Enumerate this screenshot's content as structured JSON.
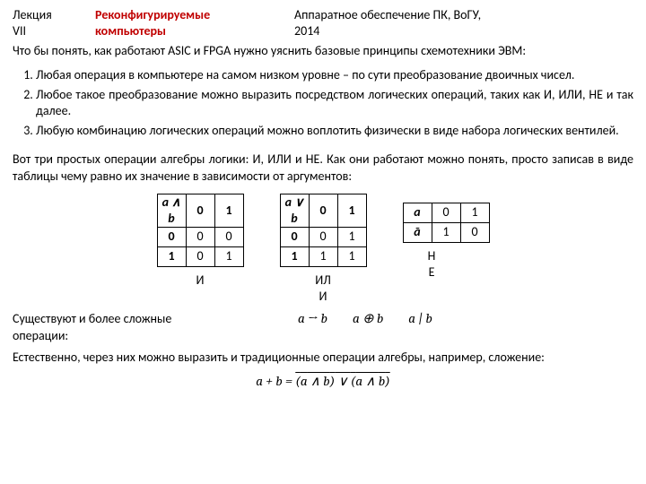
{
  "header": {
    "left_line1": "Лекция",
    "left_line2": "VII",
    "center_line1": "Реконфигурируемые",
    "center_line2": "компьютеры",
    "right_line1": "Аппаратное обеспечение ПК, ВоГУ,",
    "right_line2": "2014",
    "color_accent": "#c00000"
  },
  "p1": "Что бы понять, как работают ASIC и FPGA нужно уяснить базовые принципы схемотехники ЭВМ:",
  "list": [
    "Любая операция в компьютере на самом низком уровне – по сути преобразование двоичных чисел.",
    "Любое такое преобразование можно выразить посредством логических операций, таких как И, ИЛИ, НЕ и так далее.",
    "Любую комбинацию логических операций можно воплотить физически в виде набора логических вентилей."
  ],
  "p2": "Вот три простых операции алгебры логики: И, ИЛИ и НЕ. Как они работают можно понять, просто записав в виде таблицы чему равно их значение в зависимости от аргументов:",
  "tables": {
    "and": {
      "header": [
        "a ∧ b",
        "0",
        "1"
      ],
      "rows": [
        [
          "0",
          "0",
          "0"
        ],
        [
          "1",
          "0",
          "1"
        ]
      ],
      "caption": "И"
    },
    "or": {
      "header": [
        "a ∨ b",
        "0",
        "1"
      ],
      "rows": [
        [
          "0",
          "0",
          "1"
        ],
        [
          "1",
          "1",
          "1"
        ]
      ],
      "caption_l1": "ИЛ",
      "caption_l2": "И"
    },
    "not": {
      "rows": [
        [
          "a",
          "0",
          "1"
        ],
        [
          "ā",
          "1",
          "0"
        ]
      ],
      "caption_l1": "Н",
      "caption_l2": "Е"
    }
  },
  "ops_label_l1": "Существуют и более сложные",
  "ops_label_l2": "операции:",
  "ops_impl": "a → b",
  "ops_xor": "a ⊕ b",
  "ops_shef": "a | b",
  "p3": "Естественно, через них можно выразить и традиционные операции алгебры, например, сложение:",
  "formula_lhs": "a + b = ",
  "formula_t1a": "a",
  "formula_t1op": " ∧ b",
  "formula_mid": " ∨ ",
  "formula_t2a": "a ∧ ",
  "formula_t2b": "b"
}
